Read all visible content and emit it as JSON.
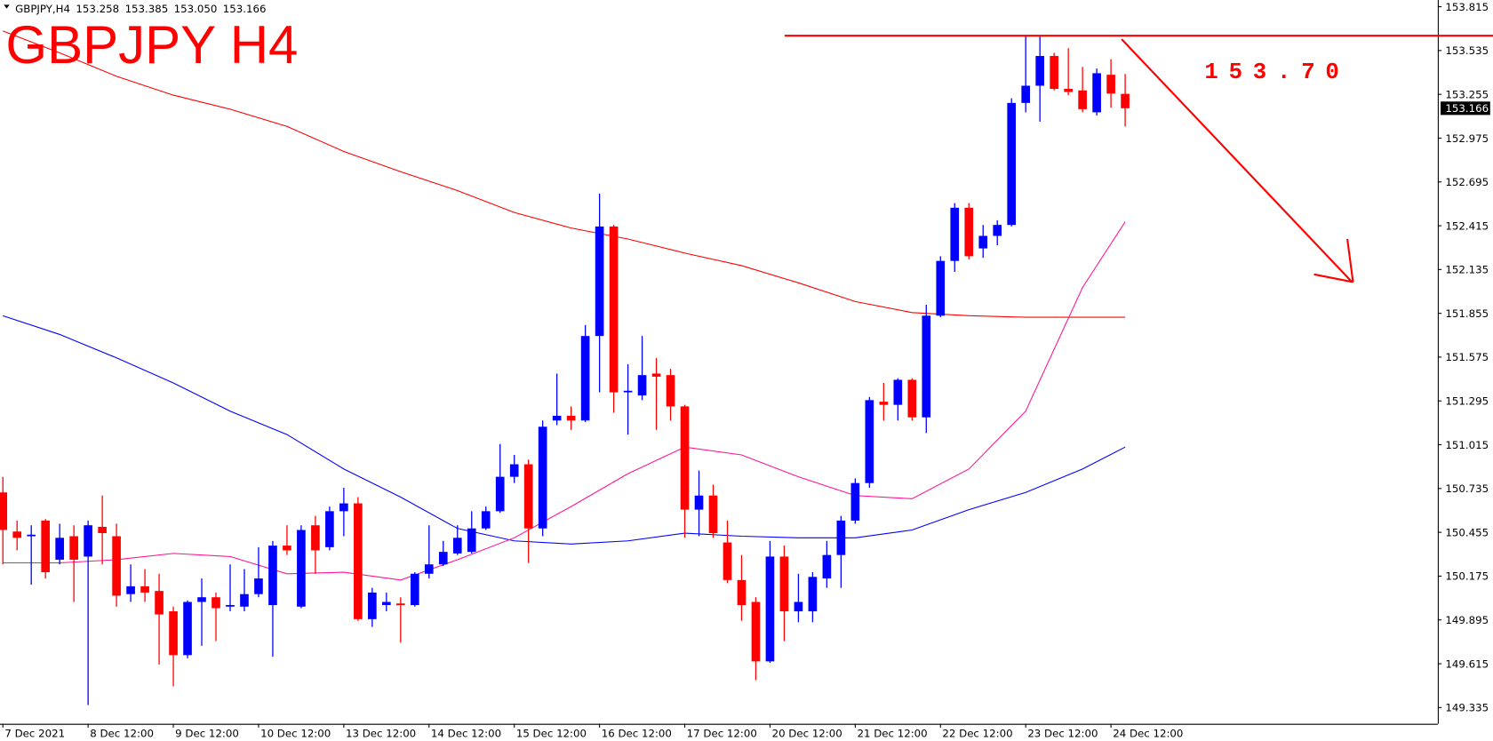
{
  "chart_data": {
    "type": "candlestick",
    "title": "GBPJPY H4",
    "header": {
      "symbol": "GBPJPY,H4",
      "ohlc_labels": [
        "153.258",
        "153.385",
        "153.050",
        "153.166"
      ]
    },
    "annotation": {
      "label": "153.70",
      "level": 153.63,
      "color": "#ff0000"
    },
    "categories": [
      "7 Dec 2021",
      null,
      null,
      null,
      null,
      null,
      "8 Dec 12:00",
      null,
      null,
      null,
      null,
      null,
      "9 Dec 12:00",
      null,
      null,
      null,
      null,
      null,
      "10 Dec 12:00",
      null,
      null,
      null,
      null,
      null,
      "13 Dec 12:00",
      null,
      null,
      null,
      null,
      null,
      "14 Dec 12:00",
      null,
      null,
      null,
      null,
      null,
      "15 Dec 12:00",
      null,
      null,
      null,
      null,
      null,
      "16 Dec 12:00",
      null,
      null,
      null,
      null,
      null,
      "17 Dec 12:00",
      null,
      null,
      null,
      null,
      null,
      "20 Dec 12:00",
      null,
      null,
      null,
      null,
      null,
      "21 Dec 12:00",
      null,
      null,
      null,
      null,
      null,
      "22 Dec 12:00",
      null,
      null,
      null,
      null,
      null,
      "23 Dec 12:00",
      null,
      null,
      null,
      null,
      null,
      "24 Dec 12:00",
      null
    ],
    "up_color": "#0000ff",
    "down_color": "#ff0000",
    "candles": {
      "open": [
        150.71,
        150.46,
        150.43,
        150.53,
        150.28,
        150.43,
        150.3,
        150.49,
        150.43,
        150.06,
        150.11,
        150.08,
        149.95,
        149.67,
        150.01,
        150.04,
        149.98,
        149.98,
        150.06,
        149.99,
        150.37,
        149.98,
        150.5,
        150.36,
        150.59,
        150.64,
        149.9,
        149.99,
        150.0,
        149.99,
        150.19,
        150.25,
        150.32,
        150.33,
        150.48,
        150.59,
        150.81,
        150.89,
        150.48,
        151.17,
        151.2,
        151.17,
        151.71,
        152.41,
        151.35,
        151.33,
        151.47,
        151.46,
        151.26,
        150.6,
        150.69,
        150.39,
        150.15,
        150.01,
        149.63,
        150.3,
        149.95,
        149.95,
        150.16,
        150.31,
        150.53,
        150.77,
        151.29,
        151.27,
        151.43,
        151.19,
        151.84,
        152.19,
        152.53,
        152.27,
        152.35,
        152.42,
        153.2,
        153.31,
        153.5,
        153.29,
        153.28,
        153.14,
        153.38,
        153.258
      ],
      "high": [
        150.81,
        150.53,
        150.5,
        150.54,
        150.51,
        150.5,
        150.53,
        150.69,
        150.51,
        150.25,
        150.22,
        150.19,
        149.98,
        150.02,
        150.16,
        150.07,
        150.25,
        150.22,
        150.36,
        150.4,
        150.5,
        150.5,
        150.56,
        150.62,
        150.74,
        150.68,
        150.1,
        150.07,
        150.04,
        150.2,
        150.5,
        150.4,
        150.5,
        150.59,
        150.62,
        151.02,
        150.95,
        150.92,
        151.17,
        151.47,
        151.26,
        151.78,
        152.62,
        152.42,
        151.53,
        151.71,
        151.57,
        151.5,
        151.27,
        150.85,
        150.76,
        150.53,
        150.31,
        150.04,
        150.4,
        150.37,
        150.19,
        150.2,
        150.4,
        150.56,
        150.8,
        151.32,
        151.41,
        151.44,
        151.44,
        151.91,
        152.22,
        152.56,
        152.56,
        152.42,
        152.45,
        153.23,
        153.63,
        153.63,
        153.52,
        153.55,
        153.43,
        153.42,
        153.48,
        153.385
      ],
      "low": [
        150.25,
        150.34,
        150.12,
        150.16,
        150.25,
        150.01,
        149.35,
        150.25,
        149.98,
        150.01,
        150.01,
        149.61,
        149.47,
        149.65,
        149.73,
        149.76,
        149.95,
        149.95,
        150.04,
        149.66,
        150.31,
        149.97,
        150.19,
        150.34,
        150.43,
        149.89,
        149.85,
        149.95,
        149.75,
        149.98,
        150.16,
        150.24,
        150.31,
        150.32,
        150.47,
        150.58,
        150.77,
        150.26,
        150.43,
        151.14,
        151.11,
        151.16,
        151.35,
        151.22,
        151.08,
        151.3,
        151.11,
        151.17,
        150.42,
        150.43,
        150.42,
        150.13,
        149.89,
        149.51,
        149.62,
        149.76,
        149.88,
        149.88,
        150.1,
        150.1,
        150.51,
        150.74,
        151.17,
        151.17,
        151.17,
        151.09,
        151.83,
        152.12,
        152.2,
        152.21,
        152.29,
        152.41,
        153.14,
        153.08,
        153.28,
        153.25,
        153.14,
        153.12,
        153.17,
        153.05
      ],
      "close": [
        150.47,
        150.42,
        150.44,
        150.2,
        150.42,
        150.28,
        150.5,
        150.45,
        150.05,
        150.11,
        150.07,
        149.93,
        149.67,
        150.01,
        150.04,
        149.97,
        149.99,
        150.06,
        150.16,
        150.37,
        150.34,
        150.47,
        150.34,
        150.59,
        150.64,
        149.9,
        150.07,
        150.01,
        149.99,
        150.19,
        150.25,
        150.33,
        150.42,
        150.48,
        150.59,
        150.81,
        150.89,
        150.48,
        151.13,
        151.2,
        151.17,
        151.71,
        152.41,
        151.35,
        151.36,
        151.46,
        151.45,
        151.26,
        150.6,
        150.69,
        150.45,
        150.15,
        149.99,
        149.63,
        150.3,
        149.95,
        150.01,
        150.17,
        150.31,
        150.53,
        150.77,
        151.3,
        151.27,
        151.43,
        151.19,
        151.84,
        152.19,
        152.53,
        152.22,
        152.35,
        152.42,
        153.2,
        153.31,
        153.5,
        153.29,
        153.27,
        153.16,
        153.39,
        153.26,
        153.166
      ]
    },
    "lines": [
      {
        "color": "#ff0000",
        "x": [
          0,
          4,
          8,
          12,
          16,
          20,
          24,
          28,
          32,
          36,
          40,
          44,
          48,
          52,
          56,
          60,
          64,
          68,
          72,
          76,
          79
        ],
        "values": [
          153.66,
          153.52,
          153.37,
          153.25,
          153.16,
          153.05,
          152.89,
          152.76,
          152.64,
          152.5,
          152.4,
          152.33,
          152.24,
          152.16,
          152.05,
          151.93,
          151.86,
          151.84,
          151.83,
          151.83,
          151.83
        ]
      },
      {
        "color": "#0000ff",
        "x": [
          0,
          4,
          8,
          12,
          16,
          20,
          24,
          28,
          32,
          36,
          40,
          44,
          48,
          52,
          56,
          60,
          64,
          68,
          72,
          76,
          79
        ],
        "values": [
          151.84,
          151.72,
          151.57,
          151.41,
          151.23,
          151.08,
          150.86,
          150.68,
          150.48,
          150.4,
          150.38,
          150.4,
          150.45,
          150.43,
          150.42,
          150.42,
          150.47,
          150.6,
          150.71,
          150.86,
          151.0
        ]
      },
      {
        "color": "#ff1493",
        "x": [
          0,
          4,
          8,
          12,
          16,
          20,
          24,
          28,
          32,
          36,
          40,
          44,
          48,
          52,
          56,
          60,
          64,
          68,
          72,
          76,
          79
        ],
        "values": [
          150.26,
          150.26,
          150.28,
          150.32,
          150.3,
          150.19,
          150.2,
          150.15,
          150.28,
          150.42,
          150.62,
          150.83,
          151.0,
          150.95,
          150.81,
          150.69,
          150.67,
          150.86,
          151.23,
          152.02,
          152.44
        ]
      }
    ],
    "ylim": [
      149.231,
      153.858
    ],
    "yticks": [
      153.815,
      153.535,
      153.255,
      152.975,
      152.695,
      152.415,
      152.135,
      151.855,
      151.575,
      151.295,
      151.015,
      150.735,
      150.455,
      150.175,
      149.895,
      149.615,
      149.335
    ]
  }
}
